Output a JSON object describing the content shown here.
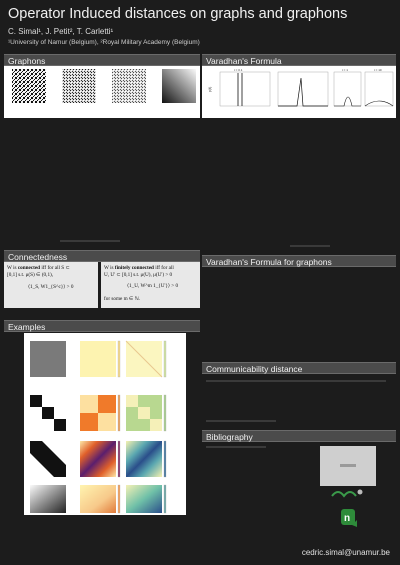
{
  "header": {
    "title": "Operator Induced distances on graphs and graphons",
    "authors": "C. Simal¹, J. Petit², T. Carletti¹",
    "affiliation": "¹University of Namur (Belgium), ²Royal Military Academy (Belgium)"
  },
  "sections": {
    "graphons": "Graphons",
    "varadhan": "Varadhan's Formula",
    "connectedness": "Connectedness",
    "varadhan_graphons": "Varadhan's Formula for graphons",
    "examples": "Examples",
    "communicability": "Communicability distance",
    "bibliography": "Bibliography"
  },
  "connectedness": {
    "left_line1_pre": "W is ",
    "left_line1_bold": "connected",
    "left_line1_post": " iff for all S ⊂",
    "left_line2": "[0,1] s.t. μ(S) ∈ (0,1),",
    "left_eq": "⟨1_S, W1_{S^c}⟩ > 0",
    "right_line1_pre": "W is ",
    "right_line1_bold": "finitely connected",
    "right_line1_post": " iff for all",
    "right_line2": "U, U' ⊂ [0,1] s.t. μ(U), μ(U') > 0",
    "right_eq": "⟨1_U, W^m 1_{U'}⟩ > 0",
    "right_tail": "for some m ∈ ℕ."
  },
  "varadhan_plots": {
    "labels": [
      "t = 0.1",
      "t = 1",
      "t = 10"
    ],
    "ylabel": "p(t)"
  },
  "colors": {
    "background": "#1c1c1c",
    "section_bar": "#4b4b4b",
    "box": "#e8e8e8",
    "logo_green": "#2e8b3a"
  },
  "footer": {
    "email": "cedric.simal@unamur.be"
  }
}
